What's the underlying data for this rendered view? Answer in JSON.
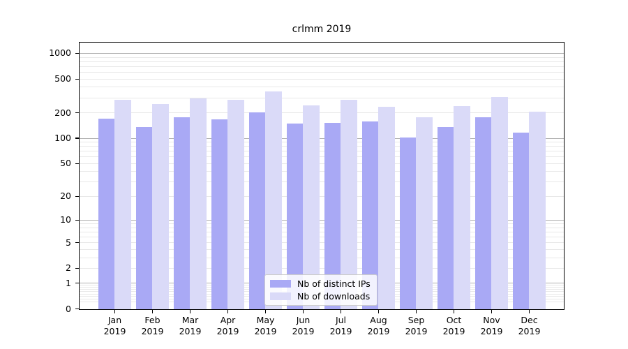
{
  "chart_data": {
    "type": "bar",
    "title": "crlmm 2019",
    "categories": [
      "Jan",
      "Feb",
      "Mar",
      "Apr",
      "May",
      "Jun",
      "Jul",
      "Aug",
      "Sep",
      "Oct",
      "Nov",
      "Dec"
    ],
    "x_year": "2019",
    "series": [
      {
        "name": "Nb of distinct IPs",
        "color": "#a9a9f5",
        "values": [
          172,
          137,
          178,
          168,
          203,
          151,
          154,
          160,
          102,
          136,
          177,
          117
        ]
      },
      {
        "name": "Nb of downloads",
        "color": "#dadaf8",
        "values": [
          289,
          256,
          296,
          286,
          361,
          246,
          288,
          237,
          178,
          242,
          310,
          208
        ]
      }
    ],
    "y_axis": {
      "scale": "log1p",
      "ticks": [
        0,
        1,
        2,
        5,
        10,
        20,
        50,
        100,
        200,
        500,
        1000
      ],
      "range": [
        0,
        1400
      ],
      "major_gridlines": [
        1,
        10,
        100,
        1000
      ],
      "grid": true
    },
    "legend": {
      "position": "bottom-center"
    },
    "colors": {
      "major_grid": "#b0b0b0",
      "minor_grid": "#e8e8e8",
      "axis": "#000000",
      "background": "#ffffff"
    }
  }
}
